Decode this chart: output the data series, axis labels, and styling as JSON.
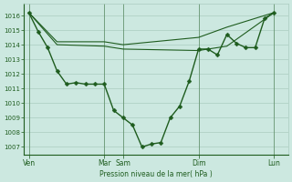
{
  "bg_color": "#cce8e0",
  "grid_color": "#aaccbf",
  "line_color": "#1e5c1e",
  "text_color": "#1e5c1e",
  "xlabel": "Pression niveau de la mer( hPa )",
  "ylim": [
    1006.5,
    1016.8
  ],
  "yticks": [
    1007,
    1008,
    1009,
    1010,
    1011,
    1012,
    1013,
    1014,
    1015,
    1016
  ],
  "xtick_positions": [
    0,
    8,
    10,
    18,
    26
  ],
  "xtick_labels": [
    "Ven",
    "Mar",
    "Sam",
    "Dim",
    "Lun"
  ],
  "xlim": [
    -0.5,
    27.5
  ],
  "vline_positions": [
    0,
    8,
    10,
    18,
    26
  ],
  "main_x": [
    0,
    1,
    2,
    3,
    4,
    5,
    6,
    7,
    8,
    9,
    10,
    11,
    12,
    13,
    14,
    15,
    16,
    17,
    18,
    19,
    20,
    21,
    22,
    23,
    24,
    25,
    26
  ],
  "main_y": [
    1016.2,
    1014.9,
    1013.8,
    1012.2,
    1011.3,
    1011.4,
    1011.3,
    1011.3,
    1011.3,
    1009.5,
    1009.0,
    1008.5,
    1007.0,
    1007.2,
    1007.3,
    1009.0,
    1009.8,
    1011.5,
    1013.7,
    1013.7,
    1013.3,
    1014.7,
    1014.1,
    1013.8,
    1013.8,
    1015.8,
    1016.2
  ],
  "upper_x": [
    0,
    3,
    8,
    10,
    18,
    21,
    26
  ],
  "upper_y": [
    1016.2,
    1014.2,
    1014.2,
    1014.0,
    1014.5,
    1015.2,
    1016.2
  ],
  "lower_x": [
    0,
    3,
    8,
    10,
    18,
    21,
    26
  ],
  "lower_y": [
    1016.2,
    1014.0,
    1013.9,
    1013.7,
    1013.6,
    1013.9,
    1016.2
  ],
  "marker_size": 2.5,
  "linewidth": 1.0,
  "band_linewidth": 0.8
}
